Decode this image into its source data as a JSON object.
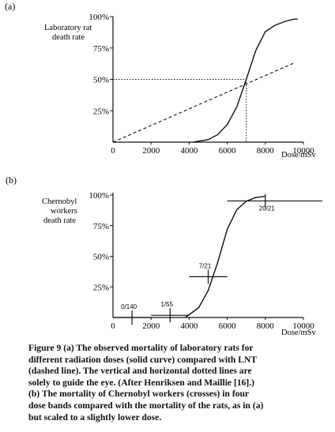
{
  "chart_data": [
    {
      "panel": "(a)",
      "type": "line",
      "ylabel_lines": [
        "Laboratory rat",
        "death rate"
      ],
      "xlabel": "Dose/mSv",
      "xlim": [
        0,
        10000
      ],
      "ylim": [
        0,
        100
      ],
      "x_ticks": [
        "0",
        "2000",
        "4000",
        "6000",
        "8000",
        "10000"
      ],
      "y_ticks": [
        "25%",
        "50%",
        "75%",
        "100%"
      ],
      "series": [
        {
          "style": "solid",
          "x": [
            4200,
            5000,
            5500,
            6000,
            6500,
            7000,
            7500,
            8000,
            8500,
            9000,
            9500,
            9700
          ],
          "y": [
            0,
            2,
            6,
            14,
            28,
            50,
            73,
            88,
            93,
            96,
            98,
            98
          ]
        },
        {
          "style": "dashed",
          "x": [
            0,
            9500
          ],
          "y": [
            0,
            63
          ]
        }
      ],
      "guides": {
        "x": 7000,
        "y": 50
      }
    },
    {
      "panel": "(b)",
      "type": "line",
      "ylabel_lines": [
        "Chernobyl",
        "workers",
        "death rate"
      ],
      "xlabel": "Dose/mSv",
      "xlim": [
        0,
        10000
      ],
      "ylim": [
        0,
        100
      ],
      "x_ticks": [
        "0",
        "2000",
        "4000",
        "6000",
        "8000",
        "10000"
      ],
      "y_ticks": [
        "25%",
        "50%",
        "75%",
        "100%"
      ],
      "curve": {
        "x": [
          3800,
          4500,
          5000,
          5500,
          6000,
          6500,
          7000,
          7500,
          8000
        ],
        "y": [
          0,
          8,
          22,
          45,
          72,
          88,
          95,
          98,
          99
        ]
      },
      "points": [
        {
          "label": "0/140",
          "x": 1000,
          "y": 0,
          "xerr": [
            0,
            2000
          ]
        },
        {
          "label": "1/55",
          "x": 3000,
          "y": 1.8,
          "xerr": [
            2000,
            4000
          ]
        },
        {
          "label": "7/21",
          "x": 5000,
          "y": 33.3,
          "xerr": [
            4000,
            6000
          ]
        },
        {
          "label": "20/21",
          "x": 8000,
          "y": 95.2,
          "xerr": [
            6000,
            11000
          ]
        }
      ]
    }
  ],
  "caption": {
    "lines": [
      "Figure 9  (a) The observed mortality of laboratory rats for",
      "different radiation doses (solid curve) compared with LNT",
      "(dashed line). The vertical and horizontal dotted lines are",
      "solely to guide the eye. (After Henriksen and Maillie [16].)",
      "(b) The mortality of Chernobyl workers (crosses) in four",
      "dose bands compared with the mortality of the rats, as in (a)",
      "but scaled to a slightly lower dose."
    ]
  }
}
